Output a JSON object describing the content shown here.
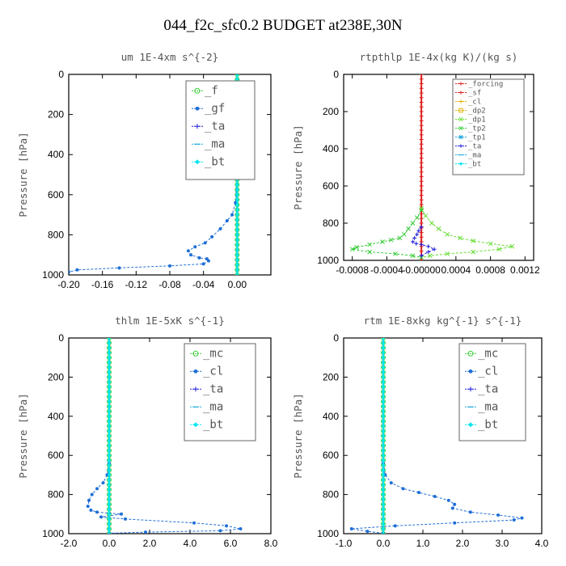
{
  "page": {
    "title": "044_f2c_sfc0.2  BUDGET at238E,30N"
  },
  "colors": {
    "green": "#33cc33",
    "blue": "#1f6fd6",
    "navy": "#2222dd",
    "cyan": "#22aadd",
    "aqua": "#00e5ee",
    "red": "#e02020",
    "gold": "#e0b000",
    "lime": "#66dd33",
    "axis": "#000000",
    "label": "#555555"
  },
  "chart_data": [
    {
      "type": "line",
      "title": "um  1E-4xm s^{-2}",
      "ylabel": "Pressure [hPa]",
      "xlim": [
        -0.2,
        0.04
      ],
      "ylim": [
        1000,
        0
      ],
      "xticks": [
        -0.2,
        -0.16,
        -0.12,
        -0.08,
        -0.04,
        0.0
      ],
      "xtick_labels": [
        "-0.20",
        "-0.16",
        "-0.12",
        "-0.08",
        "-0.04",
        "0.00"
      ],
      "yticks": [
        0,
        200,
        400,
        600,
        800,
        1000
      ],
      "grid": false,
      "legend_position": "top-right",
      "legend": [
        "_f",
        "_gf",
        "_ta",
        "_ma",
        "_bt"
      ],
      "series": [
        {
          "name": "_f",
          "color": "green",
          "marker": "circle",
          "x": [
            0.0,
            0.0
          ],
          "y": [
            0,
            1000
          ]
        },
        {
          "name": "_gf",
          "color": "blue",
          "marker": "dot",
          "x": [
            0.0,
            -0.002,
            -0.006,
            -0.012,
            -0.02,
            -0.03,
            -0.038,
            -0.05,
            -0.058,
            -0.055,
            -0.045,
            -0.036,
            -0.034,
            -0.04,
            -0.08,
            -0.14,
            -0.19,
            -0.2
          ],
          "y": [
            500,
            640,
            700,
            730,
            770,
            810,
            840,
            860,
            880,
            900,
            915,
            920,
            930,
            945,
            955,
            965,
            975,
            985
          ]
        },
        {
          "name": "_ta",
          "color": "navy",
          "marker": "plus",
          "x": [],
          "y": []
        },
        {
          "name": "_ma",
          "color": "cyan",
          "marker": "dash",
          "x": [],
          "y": []
        },
        {
          "name": "_bt",
          "color": "aqua",
          "marker": "diamond",
          "x": [
            0.0,
            0.0
          ],
          "y": [
            0,
            1000
          ]
        }
      ]
    },
    {
      "type": "line",
      "title": "rtpthlp  1E-4x(kg K)/(kg s)",
      "ylabel": "Pressure [hPa]",
      "xlim": [
        -0.0009,
        0.0013
      ],
      "ylim": [
        1000,
        0
      ],
      "xticks": [
        -0.0008,
        -0.0004,
        0.0,
        0.0004,
        0.0008,
        0.0012
      ],
      "xtick_labels": [
        "-0.0008",
        "-0.0004",
        "-0.00000",
        "0.0004",
        "0.0008",
        "0.0012"
      ],
      "yticks": [
        0,
        200,
        400,
        600,
        800,
        1000
      ],
      "grid": false,
      "legend_position": "top-right",
      "legend": [
        "_forcing",
        "_sf",
        "_cl",
        "_dp2",
        "_dp1",
        "_tp2",
        "_tp1",
        "_ta",
        "_ma",
        "_bt"
      ],
      "series": [
        {
          "name": "_forcing",
          "color": "red",
          "marker": "plus",
          "x": [
            0.0,
            0.0
          ],
          "y": [
            0,
            1000
          ]
        },
        {
          "name": "_sf",
          "color": "red",
          "marker": "plus",
          "x": [],
          "y": []
        },
        {
          "name": "_cl",
          "color": "gold",
          "marker": "plus",
          "x": [],
          "y": []
        },
        {
          "name": "_dp2",
          "color": "gold",
          "marker": "square",
          "x": [],
          "y": []
        },
        {
          "name": "_dp1",
          "color": "lime",
          "marker": "cross",
          "x": [
            0.0,
            5e-05,
            0.00012,
            0.0002,
            0.0003,
            0.00045,
            0.0006,
            0.0008,
            0.00105,
            0.0009,
            0.0006,
            0.0003,
            0.0001,
            0.0
          ],
          "y": [
            720,
            760,
            800,
            830,
            860,
            880,
            895,
            910,
            925,
            940,
            955,
            965,
            975,
            985
          ]
        },
        {
          "name": "_tp2",
          "color": "green",
          "marker": "cross",
          "x": [
            0.0,
            -5e-05,
            -0.0001,
            -0.00015,
            -0.0002,
            -0.00025,
            -0.00035,
            -0.00045,
            -0.0006,
            -0.00075,
            -0.0008,
            -0.0006,
            -0.0003,
            -0.0001,
            0.0
          ],
          "y": [
            730,
            770,
            800,
            830,
            860,
            880,
            890,
            900,
            915,
            930,
            940,
            955,
            965,
            975,
            985
          ]
        },
        {
          "name": "_tp1",
          "color": "cyan",
          "marker": "asterisk",
          "x": [],
          "y": []
        },
        {
          "name": "_ta",
          "color": "navy",
          "marker": "plus",
          "x": [
            0.0,
            -3e-05,
            -5e-05,
            -8e-05,
            -0.0001,
            -6e-05,
            0.0,
            8e-05,
            0.00015,
            8e-05,
            0.0
          ],
          "y": [
            820,
            840,
            860,
            880,
            900,
            910,
            915,
            925,
            940,
            955,
            975
          ]
        },
        {
          "name": "_ma",
          "color": "cyan",
          "marker": "dash",
          "x": [],
          "y": []
        },
        {
          "name": "_bt",
          "color": "aqua",
          "marker": "diamond",
          "x": [],
          "y": []
        }
      ]
    },
    {
      "type": "line",
      "title": "thlm  1E-5xK s^{-1}",
      "ylabel": "Pressure [hPa]",
      "xlim": [
        -2.0,
        8.0
      ],
      "ylim": [
        1000,
        0
      ],
      "xticks": [
        -2.0,
        0.0,
        2.0,
        4.0,
        6.0,
        8.0
      ],
      "xtick_labels": [
        "-2.0",
        "0.0",
        "2.0",
        "4.0",
        "6.0",
        "8.0"
      ],
      "yticks": [
        0,
        200,
        400,
        600,
        800,
        1000
      ],
      "grid": false,
      "legend_position": "top-right",
      "legend": [
        "_mc",
        "_cl",
        "_ta",
        "_ma",
        "_bt"
      ],
      "series": [
        {
          "name": "_mc",
          "color": "green",
          "marker": "circle",
          "x": [
            0.0,
            0.0
          ],
          "y": [
            0,
            1000
          ]
        },
        {
          "name": "_cl",
          "color": "blue",
          "marker": "dot",
          "x": [
            0.0,
            -0.1,
            -0.3,
            -0.6,
            -0.85,
            -1.0,
            -1.05,
            -0.9,
            -0.6,
            0.6,
            -0.4,
            0.8,
            4.2,
            5.8,
            6.5,
            5.5,
            1.8,
            0.0
          ],
          "y": [
            640,
            700,
            740,
            770,
            800,
            830,
            860,
            880,
            890,
            900,
            915,
            925,
            945,
            960,
            975,
            985,
            992,
            998
          ]
        },
        {
          "name": "_ta",
          "color": "navy",
          "marker": "plus",
          "x": [],
          "y": []
        },
        {
          "name": "_ma",
          "color": "cyan",
          "marker": "dash",
          "x": [],
          "y": []
        },
        {
          "name": "_bt",
          "color": "aqua",
          "marker": "diamond",
          "x": [
            0.0,
            0.0
          ],
          "y": [
            0,
            1000
          ]
        }
      ]
    },
    {
      "type": "line",
      "title": "rtm  1E-8xkg kg^{-1} s^{-1}",
      "ylabel": "Pressure [hPa]",
      "xlim": [
        -1.0,
        4.0
      ],
      "ylim": [
        1000,
        0
      ],
      "xticks": [
        -1.0,
        0.0,
        1.0,
        2.0,
        3.0,
        4.0
      ],
      "xtick_labels": [
        "-1.0",
        "0.0",
        "1.0",
        "2.0",
        "3.0",
        "4.0"
      ],
      "yticks": [
        0,
        200,
        400,
        600,
        800,
        1000
      ],
      "grid": false,
      "legend_position": "top-right",
      "legend": [
        "_mc",
        "_cl",
        "_ta",
        "_ma",
        "_bt"
      ],
      "series": [
        {
          "name": "_mc",
          "color": "green",
          "marker": "circle",
          "x": [
            0.0,
            0.0
          ],
          "y": [
            0,
            1000
          ]
        },
        {
          "name": "_cl",
          "color": "blue",
          "marker": "dot",
          "x": [
            0.0,
            0.05,
            0.2,
            0.5,
            0.9,
            1.3,
            1.65,
            1.8,
            1.75,
            2.2,
            2.9,
            3.5,
            3.3,
            1.8,
            0.3,
            -0.8,
            -0.4,
            0.0
          ],
          "y": [
            640,
            700,
            740,
            770,
            790,
            810,
            830,
            850,
            870,
            890,
            905,
            920,
            930,
            945,
            960,
            975,
            988,
            998
          ]
        },
        {
          "name": "_ta",
          "color": "navy",
          "marker": "plus",
          "x": [],
          "y": []
        },
        {
          "name": "_ma",
          "color": "cyan",
          "marker": "dash",
          "x": [],
          "y": []
        },
        {
          "name": "_bt",
          "color": "aqua",
          "marker": "diamond",
          "x": [
            0.0,
            0.0
          ],
          "y": [
            0,
            1000
          ]
        }
      ]
    }
  ]
}
